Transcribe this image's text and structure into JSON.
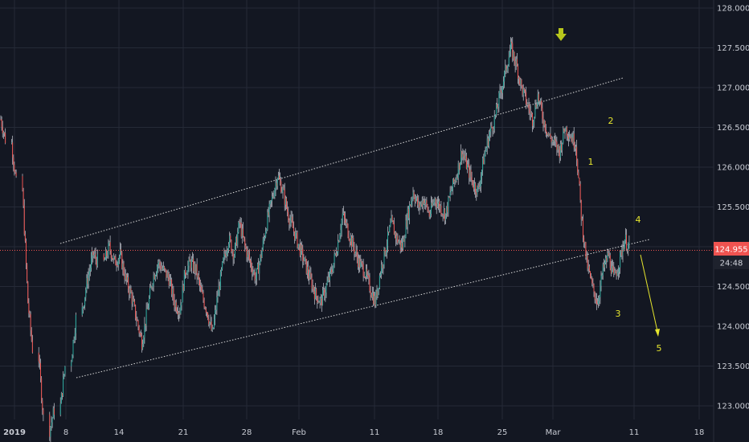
{
  "chart_data": {
    "type": "line",
    "title": "",
    "ylim": [
      122.8,
      128.1
    ],
    "y_ticks": [
      "128.000",
      "127.500",
      "127.000",
      "126.500",
      "126.000",
      "125.500",
      "125.000",
      "124.500",
      "124.000",
      "123.500",
      "123.000"
    ],
    "x_ticks": [
      "2019",
      "8",
      "14",
      "21",
      "28",
      "Feb",
      "11",
      "18",
      "25",
      "Mar",
      "11",
      "18"
    ],
    "grid": true,
    "last_price": "124.955",
    "countdown": "24:48",
    "colors": {
      "background": "#131722",
      "up": "#26a69a",
      "down": "#ef5350",
      "wick": "#b2b5be",
      "annotation": "#e6e62e",
      "price_line": "#ef5350",
      "channel": "#d9d9d9"
    },
    "wave_labels": [
      "1",
      "2",
      "3",
      "4",
      "5"
    ],
    "price_path": [
      {
        "x": 0,
        "y": 126.6
      },
      {
        "x": 2,
        "y": 126.3
      },
      {
        "x": 4,
        "y": 125.7
      },
      {
        "x": 5,
        "y": 124.3
      },
      {
        "x": 7,
        "y": 123.6
      },
      {
        "x": 9,
        "y": 122.7
      },
      {
        "x": 11,
        "y": 123.0
      },
      {
        "x": 13,
        "y": 123.6
      },
      {
        "x": 15,
        "y": 124.2
      },
      {
        "x": 16,
        "y": 124.6
      },
      {
        "x": 17,
        "y": 124.9
      },
      {
        "x": 19,
        "y": 124.8
      },
      {
        "x": 20,
        "y": 125.0
      },
      {
        "x": 21,
        "y": 124.8
      },
      {
        "x": 22,
        "y": 124.9
      },
      {
        "x": 23,
        "y": 124.6
      },
      {
        "x": 24,
        "y": 124.4
      },
      {
        "x": 25,
        "y": 124.1
      },
      {
        "x": 26,
        "y": 123.8
      },
      {
        "x": 27,
        "y": 124.2
      },
      {
        "x": 28,
        "y": 124.6
      },
      {
        "x": 29,
        "y": 124.8
      },
      {
        "x": 30,
        "y": 124.7
      },
      {
        "x": 31,
        "y": 124.6
      },
      {
        "x": 32,
        "y": 124.3
      },
      {
        "x": 33,
        "y": 124.2
      },
      {
        "x": 34,
        "y": 124.7
      },
      {
        "x": 35,
        "y": 124.8
      },
      {
        "x": 36,
        "y": 124.7
      },
      {
        "x": 37,
        "y": 124.4
      },
      {
        "x": 38,
        "y": 124.2
      },
      {
        "x": 39,
        "y": 123.9
      },
      {
        "x": 40,
        "y": 124.4
      },
      {
        "x": 41,
        "y": 124.8
      },
      {
        "x": 42,
        "y": 125.1
      },
      {
        "x": 43,
        "y": 124.9
      },
      {
        "x": 44,
        "y": 125.3
      },
      {
        "x": 45,
        "y": 125.0
      },
      {
        "x": 46,
        "y": 124.8
      },
      {
        "x": 47,
        "y": 124.6
      },
      {
        "x": 48,
        "y": 124.9
      },
      {
        "x": 49,
        "y": 125.3
      },
      {
        "x": 50,
        "y": 125.6
      },
      {
        "x": 51,
        "y": 125.9
      },
      {
        "x": 52,
        "y": 125.7
      },
      {
        "x": 53,
        "y": 125.4
      },
      {
        "x": 54,
        "y": 125.2
      },
      {
        "x": 55,
        "y": 125.0
      },
      {
        "x": 56,
        "y": 124.8
      },
      {
        "x": 57,
        "y": 124.6
      },
      {
        "x": 58,
        "y": 124.4
      },
      {
        "x": 59,
        "y": 124.3
      },
      {
        "x": 60,
        "y": 124.5
      },
      {
        "x": 61,
        "y": 124.7
      },
      {
        "x": 62,
        "y": 125.0
      },
      {
        "x": 63,
        "y": 125.4
      },
      {
        "x": 64,
        "y": 125.2
      },
      {
        "x": 65,
        "y": 125.0
      },
      {
        "x": 66,
        "y": 124.8
      },
      {
        "x": 67,
        "y": 124.7
      },
      {
        "x": 68,
        "y": 124.5
      },
      {
        "x": 69,
        "y": 124.3
      },
      {
        "x": 70,
        "y": 124.7
      },
      {
        "x": 71,
        "y": 125.0
      },
      {
        "x": 72,
        "y": 125.3
      },
      {
        "x": 73,
        "y": 125.1
      },
      {
        "x": 74,
        "y": 125.0
      },
      {
        "x": 75,
        "y": 125.4
      },
      {
        "x": 76,
        "y": 125.7
      },
      {
        "x": 77,
        "y": 125.5
      },
      {
        "x": 78,
        "y": 125.6
      },
      {
        "x": 79,
        "y": 125.4
      },
      {
        "x": 80,
        "y": 125.6
      },
      {
        "x": 81,
        "y": 125.5
      },
      {
        "x": 82,
        "y": 125.4
      },
      {
        "x": 83,
        "y": 125.7
      },
      {
        "x": 84,
        "y": 125.9
      },
      {
        "x": 85,
        "y": 126.2
      },
      {
        "x": 86,
        "y": 126.0
      },
      {
        "x": 87,
        "y": 125.8
      },
      {
        "x": 88,
        "y": 125.7
      },
      {
        "x": 89,
        "y": 126.1
      },
      {
        "x": 90,
        "y": 126.4
      },
      {
        "x": 91,
        "y": 126.6
      },
      {
        "x": 92,
        "y": 126.9
      },
      {
        "x": 93,
        "y": 127.2
      },
      {
        "x": 94,
        "y": 127.5
      },
      {
        "x": 95,
        "y": 127.3
      },
      {
        "x": 96,
        "y": 127.0
      },
      {
        "x": 97,
        "y": 126.8
      },
      {
        "x": 98,
        "y": 126.6
      },
      {
        "x": 99,
        "y": 126.9
      },
      {
        "x": 100,
        "y": 126.6
      },
      {
        "x": 101,
        "y": 126.4
      },
      {
        "x": 102,
        "y": 126.3
      },
      {
        "x": 103,
        "y": 126.2
      },
      {
        "x": 104,
        "y": 126.5
      },
      {
        "x": 105,
        "y": 126.4
      },
      {
        "x": 106,
        "y": 126.3
      },
      {
        "x": 107,
        "y": 125.4
      },
      {
        "x": 108,
        "y": 124.8
      },
      {
        "x": 109,
        "y": 124.5
      },
      {
        "x": 110,
        "y": 124.3
      },
      {
        "x": 111,
        "y": 124.7
      },
      {
        "x": 112,
        "y": 124.9
      },
      {
        "x": 113,
        "y": 124.6
      },
      {
        "x": 114,
        "y": 124.8
      },
      {
        "x": 115,
        "y": 125.1
      },
      {
        "x": 116,
        "y": 124.955
      }
    ]
  }
}
